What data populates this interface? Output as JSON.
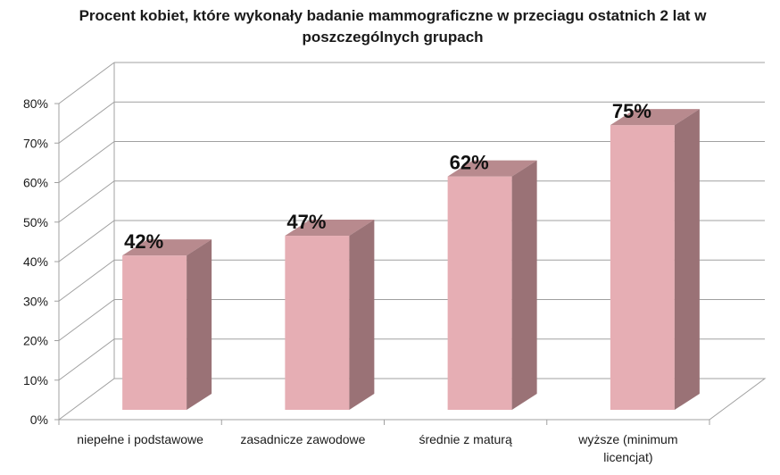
{
  "chart_data": {
    "type": "bar",
    "title": "Procent kobiet, które wykonały badanie mammograficzne w przeciagu ostatnich 2 lat w poszczególnych grupach",
    "categories": [
      "niepełne i podstawowe",
      "zasadnicze zawodowe",
      "średnie z maturą",
      "wyższe (minimum licencjat)"
    ],
    "values": [
      42,
      47,
      62,
      75
    ],
    "data_labels": [
      "42%",
      "47%",
      "62%",
      "75%"
    ],
    "y_ticks": [
      "0%",
      "10%",
      "20%",
      "30%",
      "40%",
      "50%",
      "60%",
      "70%",
      "80%"
    ],
    "ylim": [
      0,
      80
    ],
    "grid": true,
    "legend": "none",
    "style": "3d-column",
    "colors": {
      "bar_front": "#e6aeb4",
      "bar_top": "#b88a8e",
      "bar_side": "#9a7276",
      "grid": "#a0a0a0",
      "text": "#1a1a1a"
    }
  }
}
